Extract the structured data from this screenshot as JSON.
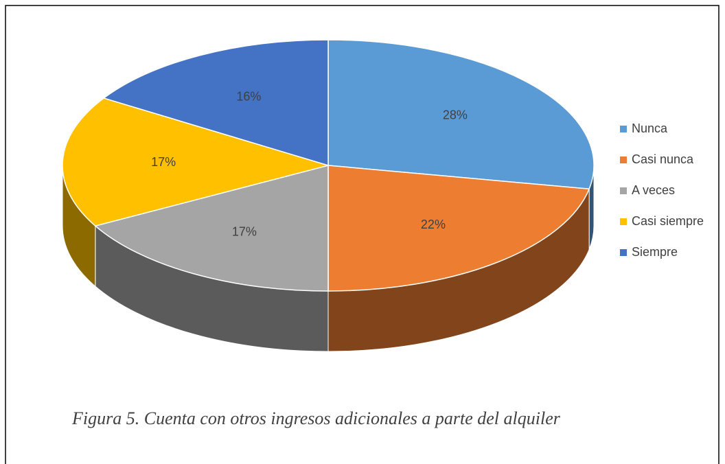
{
  "chart_data": {
    "type": "pie",
    "categories": [
      "Nunca",
      "Casi nunca",
      "A veces",
      "Casi siempre",
      "Siempre"
    ],
    "values": [
      28,
      22,
      17,
      17,
      16
    ],
    "value_labels": [
      "28%",
      "22%",
      "17%",
      "17%",
      "16%"
    ],
    "colors": [
      "#5b9bd5",
      "#ed7d31",
      "#a5a5a5",
      "#ffc000",
      "#4472c4"
    ],
    "legend": "right",
    "3d": true
  },
  "caption": "Figura 5. Cuenta con otros ingresos adicionales a parte del alquiler"
}
